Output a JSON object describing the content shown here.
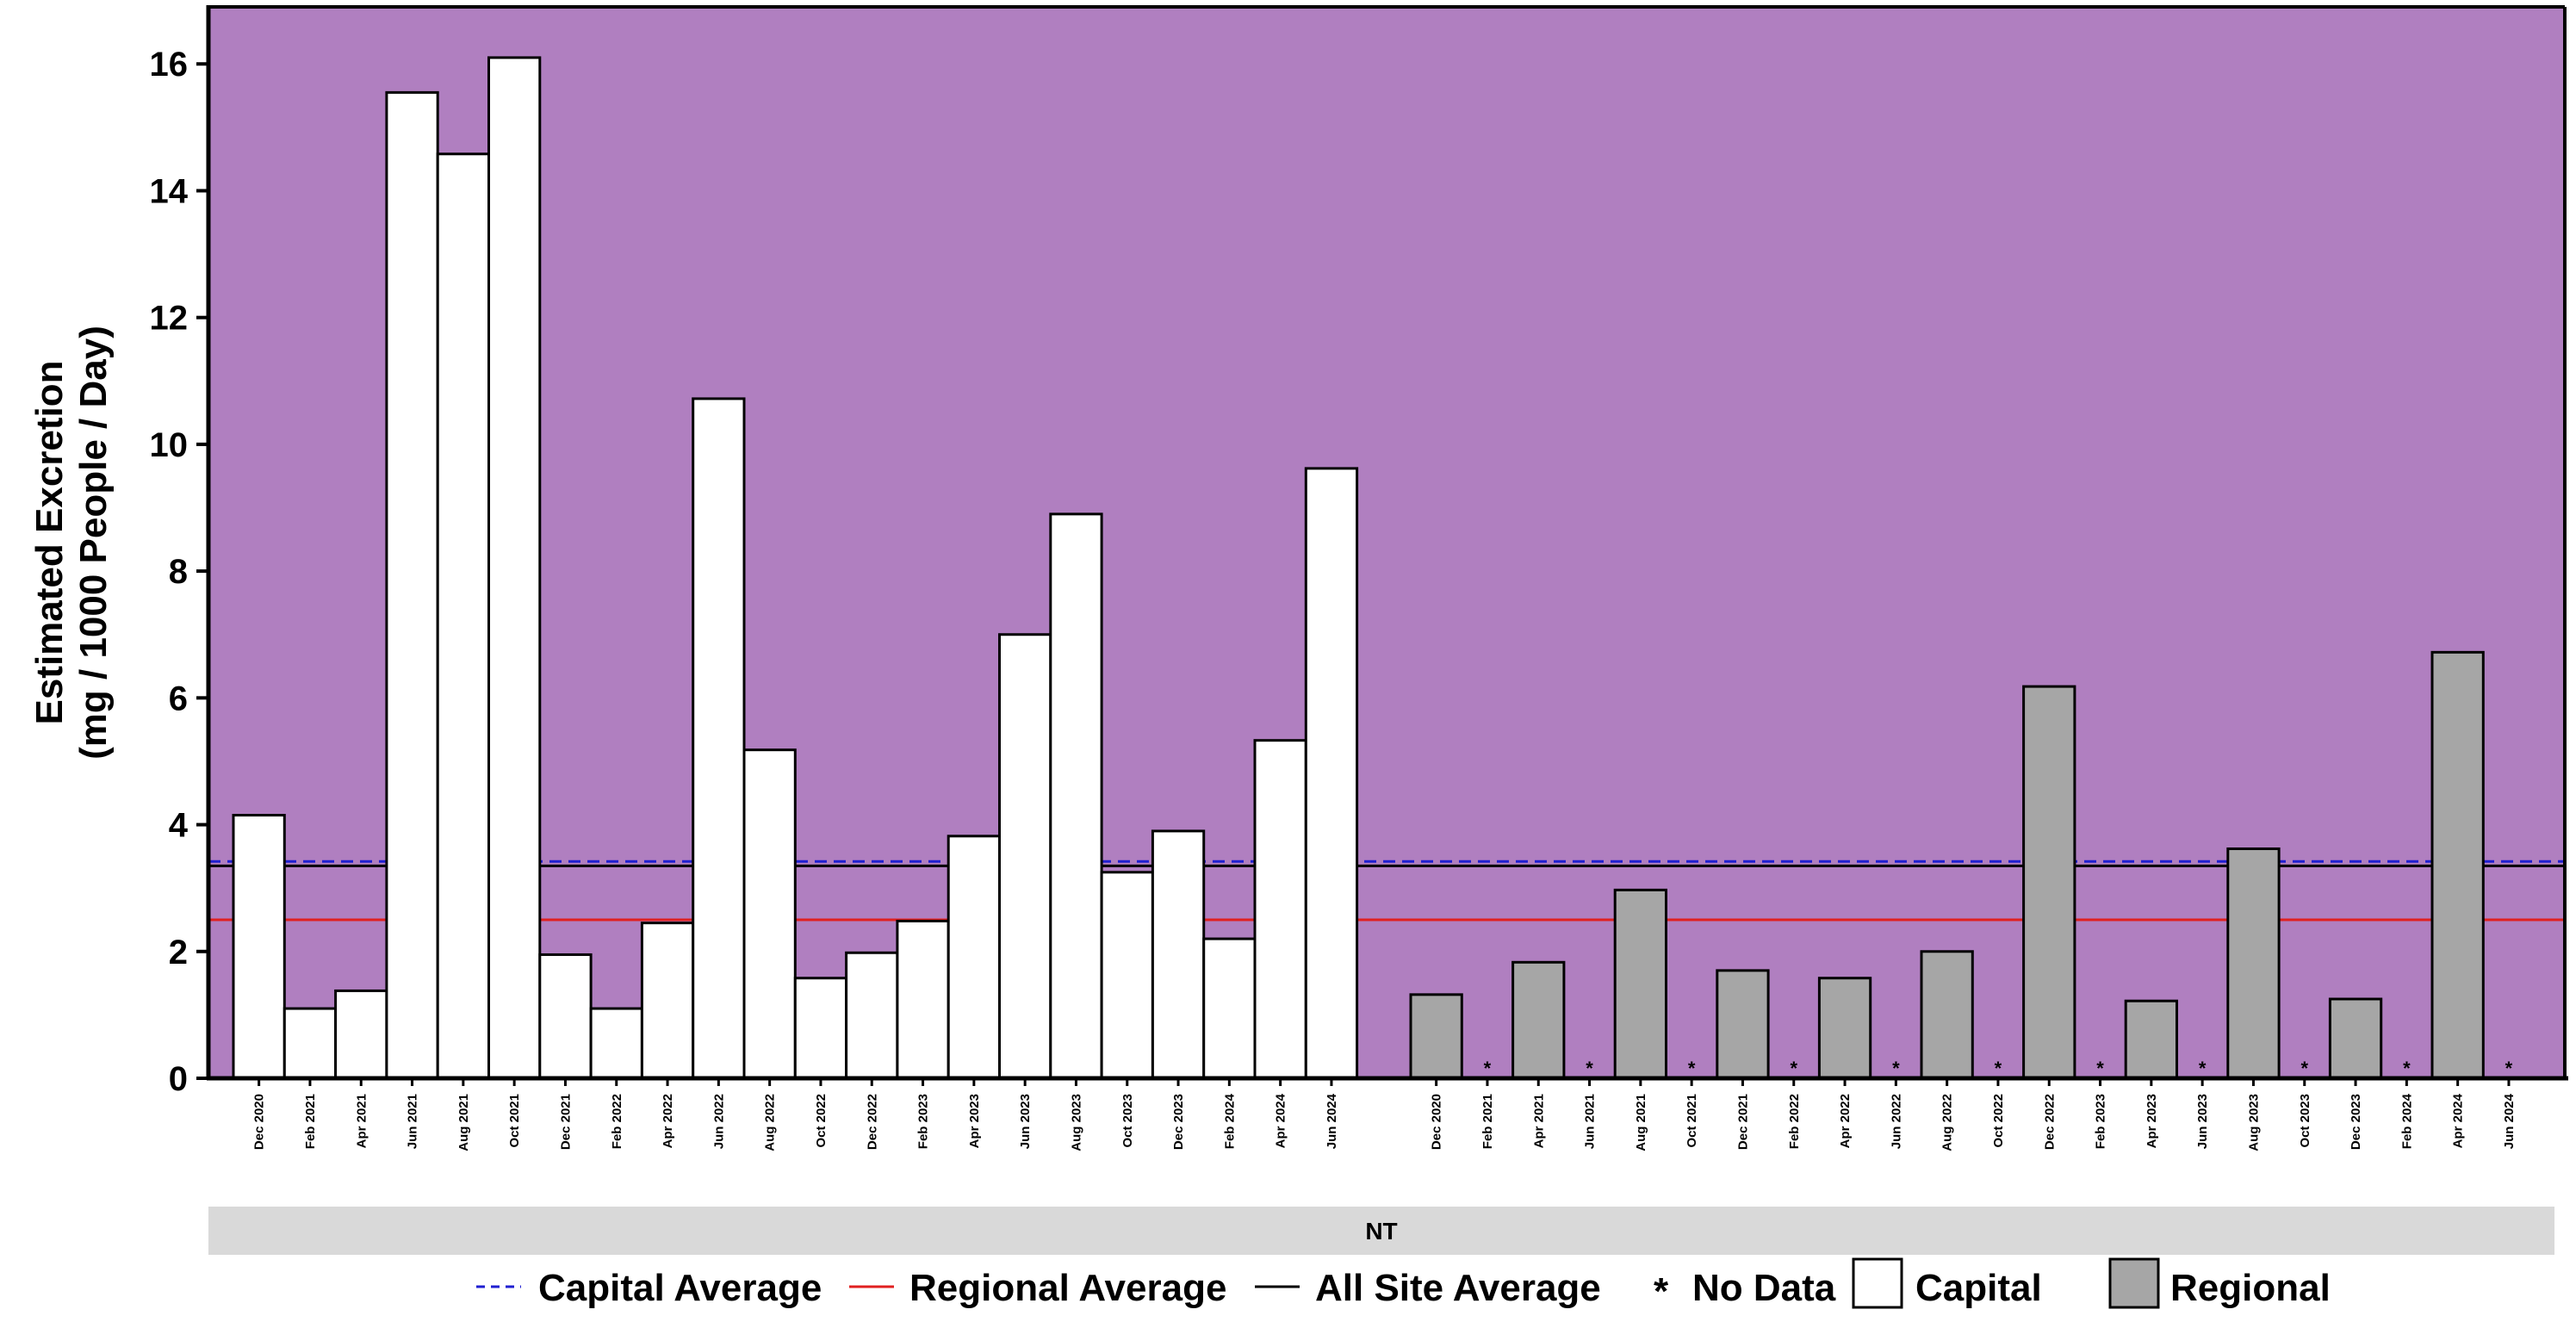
{
  "chart_data": {
    "type": "bar",
    "ylabel_line1": "Estimated Excretion",
    "ylabel_line2": "(mg / 1000 People / Day)",
    "ylim": [
      0,
      16.9
    ],
    "yticks": [
      0,
      2,
      4,
      6,
      8,
      10,
      12,
      14,
      16
    ],
    "grid": false,
    "background_color": "#b07fc0",
    "panel_label": "NT",
    "no_data_marker": "*",
    "groups": [
      {
        "name": "Capital",
        "color": "#ffffff",
        "categories": [
          "Dec 2020",
          "Feb 2021",
          "Apr 2021",
          "Jun 2021",
          "Aug 2021",
          "Oct 2021",
          "Dec 2021",
          "Feb 2022",
          "Apr 2022",
          "Jun 2022",
          "Aug 2022",
          "Oct 2022",
          "Dec 2022",
          "Feb 2023",
          "Apr 2023",
          "Jun 2023",
          "Aug 2023",
          "Oct 2023",
          "Dec 2023",
          "Feb 2024",
          "Apr 2024",
          "Jun 2024"
        ],
        "values": [
          4.15,
          1.1,
          1.38,
          15.55,
          14.58,
          16.1,
          1.95,
          1.1,
          2.45,
          10.72,
          5.18,
          1.58,
          1.98,
          2.48,
          3.82,
          7.0,
          8.9,
          3.25,
          3.9,
          2.2,
          5.33,
          9.62
        ]
      },
      {
        "name": "Regional",
        "color": "#a6a6a6",
        "categories": [
          "Dec 2020",
          "Feb 2021",
          "Apr 2021",
          "Jun 2021",
          "Aug 2021",
          "Oct 2021",
          "Dec 2021",
          "Feb 2022",
          "Apr 2022",
          "Jun 2022",
          "Aug 2022",
          "Oct 2022",
          "Dec 2022",
          "Feb 2023",
          "Apr 2023",
          "Jun 2023",
          "Aug 2023",
          "Oct 2023",
          "Dec 2023",
          "Feb 2024",
          "Apr 2024",
          "Jun 2024"
        ],
        "values": [
          1.32,
          null,
          1.83,
          null,
          2.97,
          null,
          1.7,
          null,
          1.58,
          null,
          2.0,
          null,
          6.18,
          null,
          1.22,
          null,
          3.62,
          null,
          1.25,
          null,
          6.72,
          null
        ]
      }
    ],
    "reference_lines": [
      {
        "name": "Capital Average",
        "value": 3.42,
        "color": "#1f1fd0",
        "style": "dashed"
      },
      {
        "name": "Regional Average",
        "value": 2.5,
        "color": "#e02020",
        "style": "solid"
      },
      {
        "name": "All Site Average",
        "value": 3.35,
        "color": "#000000",
        "style": "solid"
      }
    ],
    "legend": {
      "placement": "bottom",
      "items": [
        {
          "label": "Capital Average",
          "kind": "dashed-line",
          "color": "#1f1fd0"
        },
        {
          "label": "Regional Average",
          "kind": "line",
          "color": "#e02020"
        },
        {
          "label": "All Site Average",
          "kind": "line",
          "color": "#000000"
        },
        {
          "label": "No Data",
          "kind": "asterisk",
          "symbol": "*"
        },
        {
          "label": "Capital",
          "kind": "box",
          "color": "#ffffff"
        },
        {
          "label": "Regional",
          "kind": "box",
          "color": "#a6a6a6"
        }
      ]
    }
  }
}
